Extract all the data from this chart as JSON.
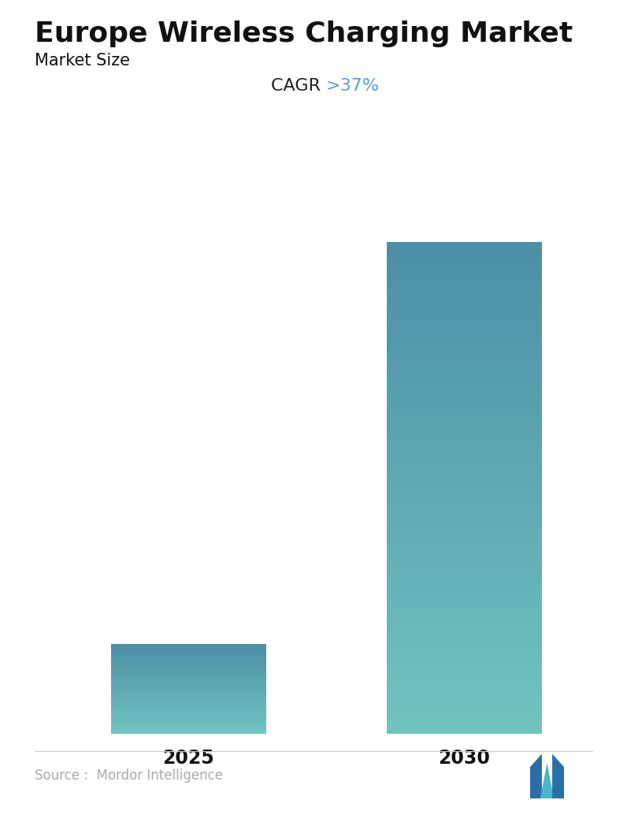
{
  "title": "Europe Wireless Charging Market",
  "subtitle": "Market Size",
  "cagr_prefix": "CAGR ",
  "cagr_suffix": ">37%",
  "categories": [
    "2025",
    "2030"
  ],
  "values": [
    1.0,
    5.5
  ],
  "bar_top_color": "#4d8fa6",
  "bar_bottom_color": "#72c4c0",
  "title_fontsize": 26,
  "subtitle_fontsize": 15,
  "xlabel_fontsize": 17,
  "source_text": "Source :  Mordor Intelligence",
  "source_color": "#aaaaaa",
  "background_color": "#ffffff",
  "cagr_color": "#5b9bd5",
  "cagr_prefix_color": "#222222",
  "ylim": [
    0,
    6.2
  ]
}
